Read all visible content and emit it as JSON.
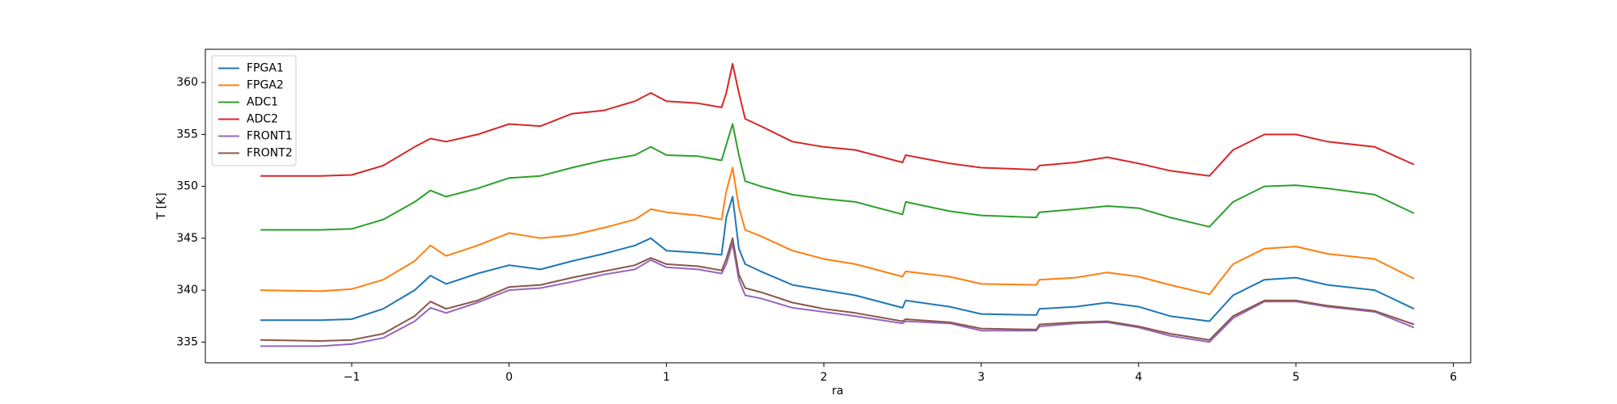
{
  "chart_data": {
    "type": "line",
    "xlabel": "ra",
    "ylabel": "T [K]",
    "x": [
      -1.58,
      -1.2,
      -1.0,
      -0.8,
      -0.6,
      -0.5,
      -0.4,
      -0.2,
      0,
      0.2,
      0.4,
      0.6,
      0.8,
      0.9,
      1.0,
      1.2,
      1.35,
      1.38,
      1.42,
      1.46,
      1.5,
      1.6,
      1.8,
      2.0,
      2.2,
      2.5,
      2.52,
      2.8,
      3.0,
      3.35,
      3.37,
      3.6,
      3.8,
      4.0,
      4.2,
      4.45,
      4.6,
      4.8,
      5.0,
      5.2,
      5.5,
      5.75
    ],
    "series": [
      {
        "name": "FPGA1",
        "color": "#1f77b4",
        "values": [
          337.1,
          337.1,
          337.2,
          338.2,
          340,
          341.4,
          340.6,
          341.6,
          342.4,
          342,
          342.8,
          343.5,
          344.3,
          345,
          343.8,
          343.6,
          343.4,
          347,
          349,
          344,
          342.5,
          341.8,
          340.5,
          340,
          339.5,
          338.3,
          339,
          338.4,
          337.7,
          337.6,
          338.2,
          338.4,
          338.8,
          338.4,
          337.5,
          337,
          339.5,
          341,
          341.2,
          340.5,
          340,
          338.2
        ]
      },
      {
        "name": "FPGA2",
        "color": "#ff7f0e",
        "values": [
          340,
          339.9,
          340.1,
          341,
          342.8,
          344.3,
          343.3,
          344.3,
          345.5,
          345,
          345.3,
          346,
          346.8,
          347.8,
          347.5,
          347.2,
          346.8,
          349.5,
          351.8,
          348,
          345.8,
          345.2,
          343.8,
          343,
          342.5,
          341.3,
          341.8,
          341.3,
          340.6,
          340.5,
          341,
          341.2,
          341.7,
          341.3,
          340.5,
          339.6,
          342.5,
          344,
          344.2,
          343.5,
          343,
          341.1
        ]
      },
      {
        "name": "ADC1",
        "color": "#2ca02c",
        "values": [
          345.8,
          345.8,
          345.9,
          346.8,
          348.5,
          349.6,
          349,
          349.8,
          350.8,
          351,
          351.8,
          352.5,
          353,
          353.8,
          353,
          352.9,
          352.5,
          354,
          356,
          353,
          350.5,
          350,
          349.2,
          348.8,
          348.5,
          347.3,
          348.5,
          347.6,
          347.2,
          347,
          347.5,
          347.8,
          348.1,
          347.9,
          347,
          346.1,
          348.5,
          350,
          350.1,
          349.8,
          349.2,
          347.4
        ]
      },
      {
        "name": "ADC2",
        "color": "#d62728",
        "values": [
          351,
          351,
          351.1,
          352,
          353.8,
          354.6,
          354.3,
          355,
          356,
          355.8,
          357,
          357.3,
          358.2,
          359,
          358.2,
          358,
          357.6,
          359,
          361.8,
          359,
          356.5,
          355.8,
          354.3,
          353.8,
          353.5,
          352.3,
          353,
          352.2,
          351.8,
          351.6,
          352,
          352.3,
          352.8,
          352.2,
          351.5,
          351,
          353.5,
          355,
          355,
          354.3,
          353.8,
          352.1
        ]
      },
      {
        "name": "FRONT1",
        "color": "#9467bd",
        "values": [
          334.6,
          334.6,
          334.8,
          335.4,
          337,
          338.3,
          337.8,
          338.8,
          340,
          340.2,
          340.8,
          341.5,
          342,
          342.9,
          342.2,
          342,
          341.6,
          342.5,
          344.5,
          341,
          339.5,
          339.2,
          338.3,
          337.9,
          337.5,
          336.8,
          337,
          336.8,
          336.1,
          336.1,
          336.5,
          336.8,
          336.9,
          336.4,
          335.6,
          335,
          337.3,
          338.9,
          338.9,
          338.4,
          337.9,
          336.4
        ]
      },
      {
        "name": "FRONT2",
        "color": "#8c564b",
        "values": [
          335.2,
          335.1,
          335.2,
          335.8,
          337.5,
          338.9,
          338.2,
          339,
          340.3,
          340.5,
          341.2,
          341.8,
          342.4,
          343.1,
          342.5,
          342.3,
          341.9,
          343,
          345,
          341.5,
          340.2,
          339.8,
          338.8,
          338.2,
          337.8,
          337,
          337.2,
          336.9,
          336.3,
          336.2,
          336.7,
          336.9,
          337,
          336.5,
          335.8,
          335.2,
          337.5,
          339,
          339,
          338.5,
          338,
          336.7
        ]
      }
    ],
    "xlim": [
      -1.93,
      6.11
    ],
    "ylim": [
      333.0,
      363.2
    ],
    "xticks": [
      {
        "value": -1,
        "label": "−1"
      },
      0,
      1,
      2,
      3,
      4,
      5,
      6
    ],
    "yticks": [
      335,
      340,
      345,
      350,
      355,
      360
    ],
    "legend": "upper left"
  }
}
